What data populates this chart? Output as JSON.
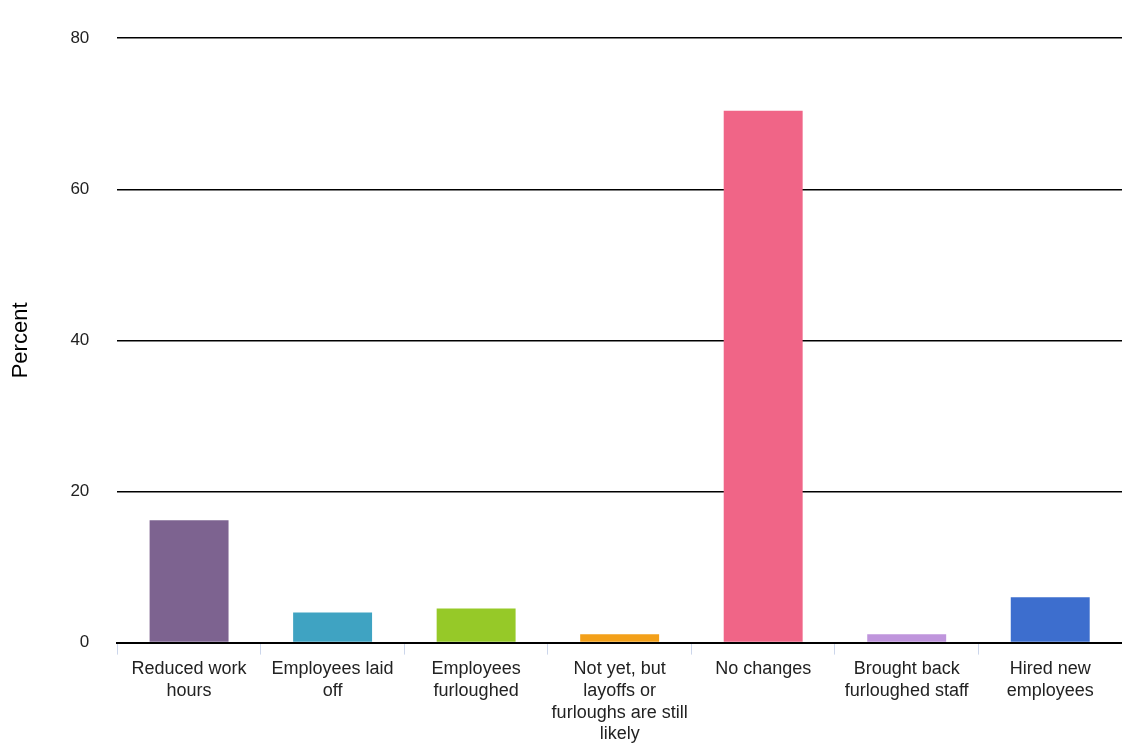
{
  "chart_data": {
    "type": "bar",
    "ylabel": "Percent",
    "categories": [
      "Reduced work hours",
      "Employees laid off",
      "Employees furloughed",
      "Not yet, but layoffs or furloughs are still likely",
      "No changes",
      "Brought back furloughed staff",
      "Hired new employees"
    ],
    "values": [
      16.2,
      4.0,
      4.5,
      1.1,
      70.4,
      1.1,
      6.0
    ],
    "colors": [
      "#7d6390",
      "#3fa3c2",
      "#96c928",
      "#f3a019",
      "#f06587",
      "#bf95dc",
      "#3d6ece"
    ],
    "ylim": [
      0,
      80
    ],
    "yticks": [
      0,
      20,
      40,
      60,
      80
    ],
    "grid": "y",
    "legend": false
  }
}
